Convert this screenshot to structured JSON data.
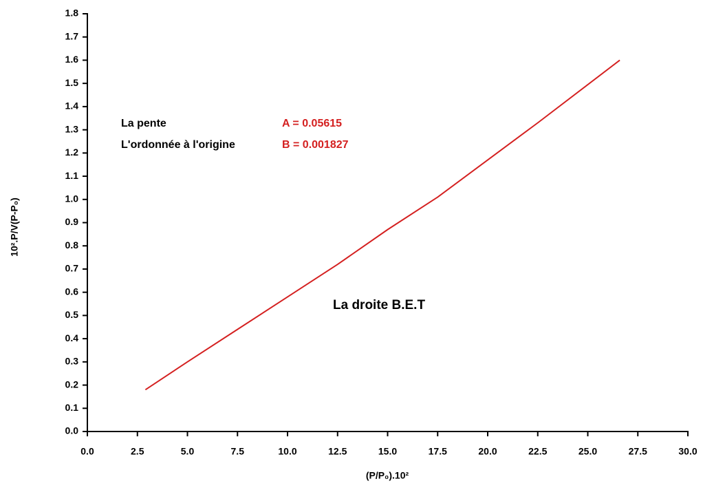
{
  "chart_data": {
    "type": "line",
    "xlabel": "(P/P₀).10²",
    "ylabel": "10².P/V(P-P₀)",
    "x": [
      2.9,
      5,
      7.5,
      10,
      12.5,
      15,
      17.5,
      20,
      22.5,
      26.6
    ],
    "series": [
      {
        "color": "#d42020",
        "values": [
          0.18,
          0.3,
          0.44,
          0.58,
          0.72,
          0.87,
          1.01,
          1.17,
          1.33,
          1.6
        ]
      }
    ],
    "xlim": [
      0,
      30
    ],
    "ylim": [
      0,
      1.8
    ],
    "xticks": [
      {
        "value": 0,
        "label": "0.0"
      },
      2.5,
      {
        "value": 5,
        "label": "5.0"
      },
      7.5,
      {
        "value": 10,
        "label": "10.0"
      },
      12.5,
      {
        "value": 15,
        "label": "15.0"
      },
      17.5,
      {
        "value": 20,
        "label": "20.0"
      },
      22.5,
      {
        "value": 25,
        "label": "25.0"
      },
      27.5,
      {
        "value": 30,
        "label": "30.0"
      }
    ],
    "yticks": [
      {
        "value": 0,
        "label": "0.0"
      },
      0.1,
      0.2,
      0.3,
      0.4,
      0.5,
      0.6,
      0.7,
      0.8,
      0.9,
      {
        "value": 1,
        "label": "1.0"
      },
      1.1,
      1.2,
      1.3,
      1.4,
      1.5,
      1.6,
      1.7,
      1.8
    ],
    "annotations": [
      {
        "text": "La pente",
        "color": "#000000"
      },
      {
        "text": "A = 0.05615",
        "color": "#d42020"
      },
      {
        "text": "L'ordonnée à l'origine",
        "color": "#000000"
      },
      {
        "text": "B = 0.001827",
        "color": "#d42020"
      },
      {
        "text": "La droite B.E.T",
        "color": "#000000"
      }
    ]
  }
}
